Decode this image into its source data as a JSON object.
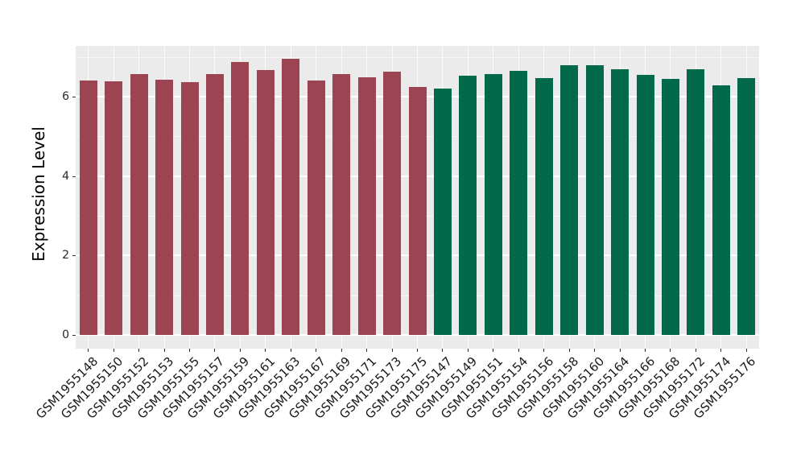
{
  "chart_data": {
    "type": "bar",
    "title": "",
    "xlabel": "",
    "ylabel": "Expression Level",
    "ylim": [
      0,
      7.28
    ],
    "yticks": [
      0,
      2,
      4,
      6
    ],
    "yminor": [
      1,
      3,
      5,
      7
    ],
    "grid": "on",
    "legend": "none",
    "group_colors": {
      "maroon": "#9C4451",
      "green": "#02694B"
    },
    "bars": [
      {
        "label": "GSM1955148",
        "value": 6.4,
        "group": "maroon"
      },
      {
        "label": "GSM1955150",
        "value": 6.38,
        "group": "maroon"
      },
      {
        "label": "GSM1955152",
        "value": 6.56,
        "group": "maroon"
      },
      {
        "label": "GSM1955153",
        "value": 6.42,
        "group": "maroon"
      },
      {
        "label": "GSM1955155",
        "value": 6.36,
        "group": "maroon"
      },
      {
        "label": "GSM1955157",
        "value": 6.56,
        "group": "maroon"
      },
      {
        "label": "GSM1955159",
        "value": 6.88,
        "group": "maroon"
      },
      {
        "label": "GSM1955161",
        "value": 6.66,
        "group": "maroon"
      },
      {
        "label": "GSM1955163",
        "value": 6.95,
        "group": "maroon"
      },
      {
        "label": "GSM1955167",
        "value": 6.41,
        "group": "maroon"
      },
      {
        "label": "GSM1955169",
        "value": 6.56,
        "group": "maroon"
      },
      {
        "label": "GSM1955171",
        "value": 6.49,
        "group": "maroon"
      },
      {
        "label": "GSM1955173",
        "value": 6.62,
        "group": "maroon"
      },
      {
        "label": "GSM1955175",
        "value": 6.24,
        "group": "maroon"
      },
      {
        "label": "GSM1955147",
        "value": 6.2,
        "group": "green"
      },
      {
        "label": "GSM1955149",
        "value": 6.52,
        "group": "green"
      },
      {
        "label": "GSM1955151",
        "value": 6.56,
        "group": "green"
      },
      {
        "label": "GSM1955154",
        "value": 6.64,
        "group": "green"
      },
      {
        "label": "GSM1955156",
        "value": 6.47,
        "group": "green"
      },
      {
        "label": "GSM1955158",
        "value": 6.79,
        "group": "green"
      },
      {
        "label": "GSM1955160",
        "value": 6.79,
        "group": "green"
      },
      {
        "label": "GSM1955164",
        "value": 6.68,
        "group": "green"
      },
      {
        "label": "GSM1955166",
        "value": 6.55,
        "group": "green"
      },
      {
        "label": "GSM1955168",
        "value": 6.44,
        "group": "green"
      },
      {
        "label": "GSM1955172",
        "value": 6.69,
        "group": "green"
      },
      {
        "label": "GSM1955174",
        "value": 6.29,
        "group": "green"
      },
      {
        "label": "GSM1955176",
        "value": 6.46,
        "group": "green"
      }
    ],
    "style": {
      "panel_bg": "#EBEBEB",
      "grid_major": "#FFFFFF",
      "axis_text_color": "#262626",
      "tick_mark_color": "#333333"
    }
  }
}
